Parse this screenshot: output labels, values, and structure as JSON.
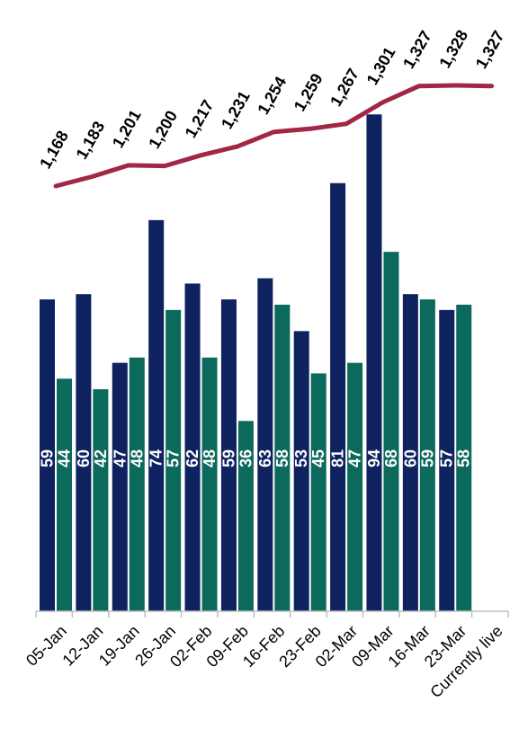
{
  "chart_data": {
    "type": "bar",
    "categories": [
      "05-Jan",
      "12-Jan",
      "19-Jan",
      "26-Jan",
      "02-Feb",
      "09-Feb",
      "16-Feb",
      "23-Feb",
      "02-Mar",
      "09-Mar",
      "16-Mar",
      "23-Mar",
      "Currently live"
    ],
    "series": [
      {
        "type": "bar",
        "color": "#0e2260",
        "values": [
          59,
          60,
          47,
          74,
          62,
          59,
          63,
          53,
          81,
          94,
          60,
          57,
          null
        ]
      },
      {
        "type": "bar",
        "color": "#0b6a5c",
        "values": [
          44,
          42,
          48,
          57,
          48,
          36,
          58,
          45,
          47,
          68,
          59,
          58,
          null
        ]
      },
      {
        "type": "line",
        "color": "#a22645",
        "values": [
          1168,
          1183,
          1201,
          1200,
          1217,
          1231,
          1254,
          1259,
          1267,
          1301,
          1327,
          1328,
          1327
        ]
      }
    ],
    "value_labels": {
      "bars_a": [
        "59",
        "60",
        "47",
        "74",
        "62",
        "59",
        "63",
        "53",
        "81",
        "94",
        "60",
        "57"
      ],
      "bars_b": [
        "44",
        "42",
        "48",
        "57",
        "48",
        "36",
        "58",
        "45",
        "47",
        "68",
        "59",
        "58"
      ],
      "line": [
        "1,168",
        "1,183",
        "1,201",
        "1,200",
        "1,217",
        "1,231",
        "1,254",
        "1,259",
        "1,267",
        "1,301",
        "1,327",
        "1,328",
        "1,327"
      ]
    },
    "bar_ylim": [
      0,
      120
    ],
    "line_ylim": [
      1000,
      1345
    ],
    "grid": false,
    "legend": "none"
  }
}
